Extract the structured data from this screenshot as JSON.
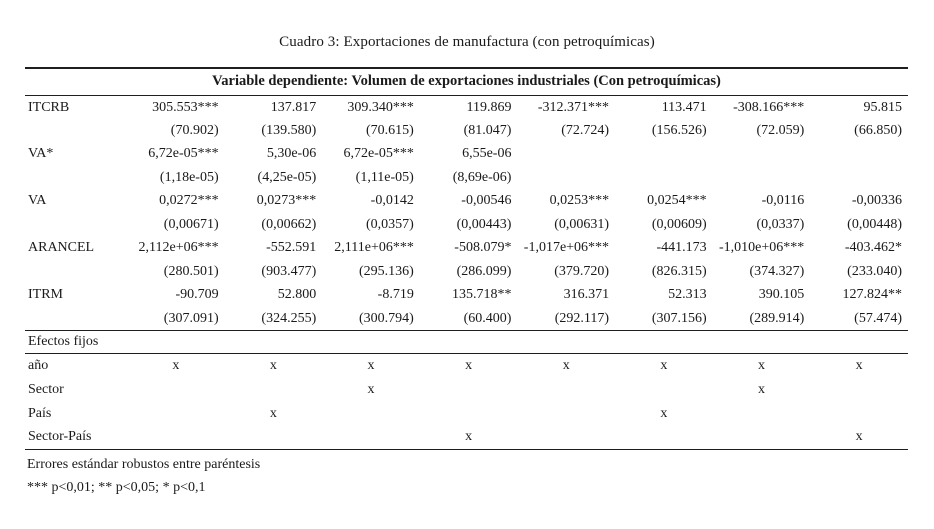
{
  "title": "Cuadro 3: Exportaciones de manufactura (con petroquímicas)",
  "table": {
    "header": "Variable dependiente: Volumen de exportaciones industriales (Con petroquímicas)",
    "rows": [
      {
        "label": "ITCRB",
        "coefs": [
          "305.553***",
          "137.817",
          "309.340***",
          "119.869",
          "-312.371***",
          "113.471",
          "-308.166***",
          "95.815"
        ],
        "ses": [
          "(70.902)",
          "(139.580)",
          "(70.615)",
          "(81.047)",
          "(72.724)",
          "(156.526)",
          "(72.059)",
          "(66.850)"
        ]
      },
      {
        "label": "VA*",
        "coefs": [
          "6,72e-05***",
          "5,30e-06",
          "6,72e-05***",
          "6,55e-06",
          "",
          "",
          "",
          ""
        ],
        "ses": [
          "(1,18e-05)",
          "(4,25e-05)",
          "(1,11e-05)",
          "(8,69e-06)",
          "",
          "",
          "",
          ""
        ]
      },
      {
        "label": "VA",
        "coefs": [
          "0,0272***",
          "0,0273***",
          "-0,0142",
          "-0,00546",
          "0,0253***",
          "0,0254***",
          "-0,0116",
          "-0,00336"
        ],
        "ses": [
          "(0,00671)",
          "(0,00662)",
          "(0,0357)",
          "(0,00443)",
          "(0,00631)",
          "(0,00609)",
          "(0,0337)",
          "(0,00448)"
        ]
      },
      {
        "label": "ARANCEL",
        "coefs": [
          "2,112e+06***",
          "-552.591",
          "2,111e+06***",
          "-508.079*",
          "-1,017e+06***",
          "-441.173",
          "-1,010e+06***",
          "-403.462*"
        ],
        "ses": [
          "(280.501)",
          "(903.477)",
          "(295.136)",
          "(286.099)",
          "(379.720)",
          "(826.315)",
          "(374.327)",
          "(233.040)"
        ]
      },
      {
        "label": "ITRM",
        "coefs": [
          "-90.709",
          "52.800",
          "-8.719",
          "135.718**",
          "316.371",
          "52.313",
          "390.105",
          "127.824**"
        ],
        "ses": [
          "(307.091)",
          "(324.255)",
          "(300.794)",
          "(60.400)",
          "(292.117)",
          "(307.156)",
          "(289.914)",
          "(57.474)"
        ]
      }
    ],
    "fixed_effects_header": "Efectos fijos",
    "fixed_effects": [
      {
        "label": "año",
        "marks": [
          "x",
          "x",
          "x",
          "x",
          "x",
          "x",
          "x",
          "x"
        ]
      },
      {
        "label": "Sector",
        "marks": [
          "",
          "",
          "x",
          "",
          "",
          "",
          "x",
          ""
        ]
      },
      {
        "label": "País",
        "marks": [
          "",
          "x",
          "",
          "",
          "",
          "x",
          "",
          ""
        ]
      },
      {
        "label": "Sector-País",
        "marks": [
          "",
          "",
          "",
          "x",
          "",
          "",
          "",
          "x"
        ]
      }
    ],
    "notes": [
      "Errores estándar robustos entre paréntesis",
      "*** p<0,01; ** p<0,05; * p<0,1"
    ]
  }
}
